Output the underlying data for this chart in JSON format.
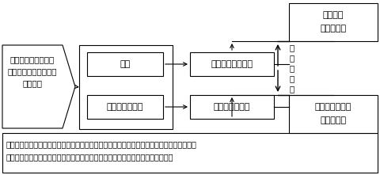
{
  "bg_color": "#ffffff",
  "font_size_main": 8.0,
  "font_size_note": 7.0,
  "font_size_side": 7.5,
  "arrow_left_text": [
    "顧客は商品とマーク",
    "とを「セット」で認識",
    "している"
  ],
  "box_trademark": "商標",
  "box_goods": "商品・サービス",
  "box_distinguish": "識別できるマーク",
  "box_trust": "信用できる品質",
  "box_effort1_line1": "識別力を",
  "box_effort1_line2": "高める努力",
  "box_effort2_line1": "品質への信用を",
  "box_effort2_line2": "高める努力",
  "side_text": [
    "両",
    "面",
    "を",
    "強",
    "化"
  ],
  "note_line1": "注：「地理的表示」の場合は上図の「商標」の部分を「地理的表示＝名称」、「商品・サー",
  "note_line2": "ビス」の部分を申請の「区分に属する農林水産物等」に、それぞれ読み変える。"
}
